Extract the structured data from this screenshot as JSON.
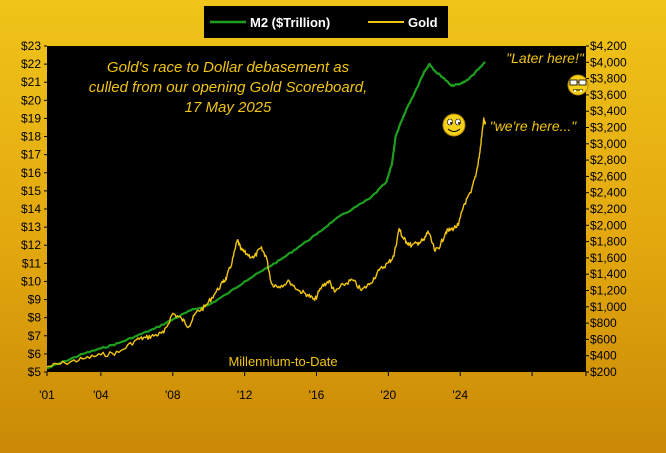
{
  "chart_data": {
    "type": "line",
    "title_lines": [
      "Gold's race to Dollar debasement as",
      "culled from our opening Gold Scoreboard,",
      "17 May 2025"
    ],
    "subtitle": "Millennium-to-Date",
    "legend": {
      "placement": "top-center"
    },
    "annotations": {
      "later": "\"Later here!\"",
      "here": "\"we're here...\""
    },
    "x_ticks": [
      "'01",
      "'04",
      "'08",
      "'12",
      "'16",
      "'20",
      "'24"
    ],
    "x_tick_years": [
      2001,
      2004,
      2008,
      2012,
      2016,
      2020,
      2024
    ],
    "xlim": [
      2001,
      2031
    ],
    "y_left": {
      "label": "M2 ($Trillion)",
      "range": [
        5,
        23
      ],
      "ticks": [
        "$5",
        "$6",
        "$7",
        "$8",
        "$9",
        "$10",
        "$11",
        "$12",
        "$13",
        "$14",
        "$15",
        "$16",
        "$17",
        "$18",
        "$19",
        "$20",
        "$21",
        "$22",
        "$23"
      ]
    },
    "y_right": {
      "label": "Gold",
      "range": [
        200,
        4200
      ],
      "ticks": [
        "$200",
        "$400",
        "$600",
        "$800",
        "$1,000",
        "$1,200",
        "$1,400",
        "$1,600",
        "$1,800",
        "$2,000",
        "$2,200",
        "$2,400",
        "$2,600",
        "$2,800",
        "$3,000",
        "$3,200",
        "$3,400",
        "$3,600",
        "$3,800",
        "$4,000",
        "$4,200"
      ]
    },
    "series": [
      {
        "name": "M2 ($Trillion)",
        "axis": "left",
        "color": "#1e9e1e",
        "x": [
          2001.0,
          2002.0,
          2003.0,
          2004.0,
          2005.0,
          2006.0,
          2007.0,
          2008.0,
          2009.0,
          2010.0,
          2011.0,
          2012.0,
          2013.0,
          2014.0,
          2015.0,
          2016.0,
          2017.0,
          2018.0,
          2019.0,
          2019.9,
          2020.2,
          2020.4,
          2020.8,
          2021.0,
          2021.5,
          2022.0,
          2022.3,
          2022.6,
          2023.0,
          2023.5,
          2024.0,
          2024.5,
          2025.0,
          2025.4
        ],
        "y": [
          5.2,
          5.6,
          6.0,
          6.3,
          6.6,
          7.0,
          7.4,
          7.9,
          8.4,
          8.7,
          9.3,
          10.0,
          10.6,
          11.2,
          11.9,
          12.6,
          13.4,
          14.0,
          14.6,
          15.5,
          16.5,
          18.0,
          19.0,
          19.5,
          20.5,
          21.6,
          22.0,
          21.6,
          21.3,
          20.8,
          20.9,
          21.2,
          21.7,
          22.1
        ]
      },
      {
        "name": "Gold",
        "axis": "right",
        "color": "#f1c40f",
        "x": [
          2001.0,
          2002.0,
          2003.0,
          2004.0,
          2005.0,
          2006.0,
          2006.5,
          2007.0,
          2007.5,
          2008.0,
          2008.5,
          2008.9,
          2009.3,
          2009.8,
          2010.3,
          2010.8,
          2011.0,
          2011.3,
          2011.6,
          2011.8,
          2012.1,
          2012.5,
          2012.9,
          2013.2,
          2013.5,
          2013.9,
          2014.5,
          2015.0,
          2015.5,
          2015.9,
          2016.3,
          2016.7,
          2017.0,
          2017.5,
          2018.0,
          2018.5,
          2019.0,
          2019.5,
          2020.0,
          2020.3,
          2020.6,
          2020.8,
          2021.0,
          2021.3,
          2021.7,
          2022.0,
          2022.2,
          2022.6,
          2022.9,
          2023.2,
          2023.5,
          2023.9,
          2024.2,
          2024.6,
          2024.9,
          2025.1,
          2025.3,
          2025.4
        ],
        "y": [
          265,
          310,
          360,
          410,
          440,
          600,
          620,
          650,
          680,
          920,
          850,
          760,
          930,
          1000,
          1150,
          1300,
          1360,
          1550,
          1820,
          1700,
          1650,
          1600,
          1720,
          1620,
          1280,
          1250,
          1310,
          1200,
          1150,
          1080,
          1250,
          1320,
          1180,
          1270,
          1330,
          1200,
          1290,
          1450,
          1540,
          1620,
          1960,
          1850,
          1800,
          1750,
          1790,
          1820,
          1930,
          1680,
          1760,
          1920,
          1950,
          2000,
          2250,
          2400,
          2650,
          2900,
          3300,
          3240
        ]
      }
    ]
  }
}
